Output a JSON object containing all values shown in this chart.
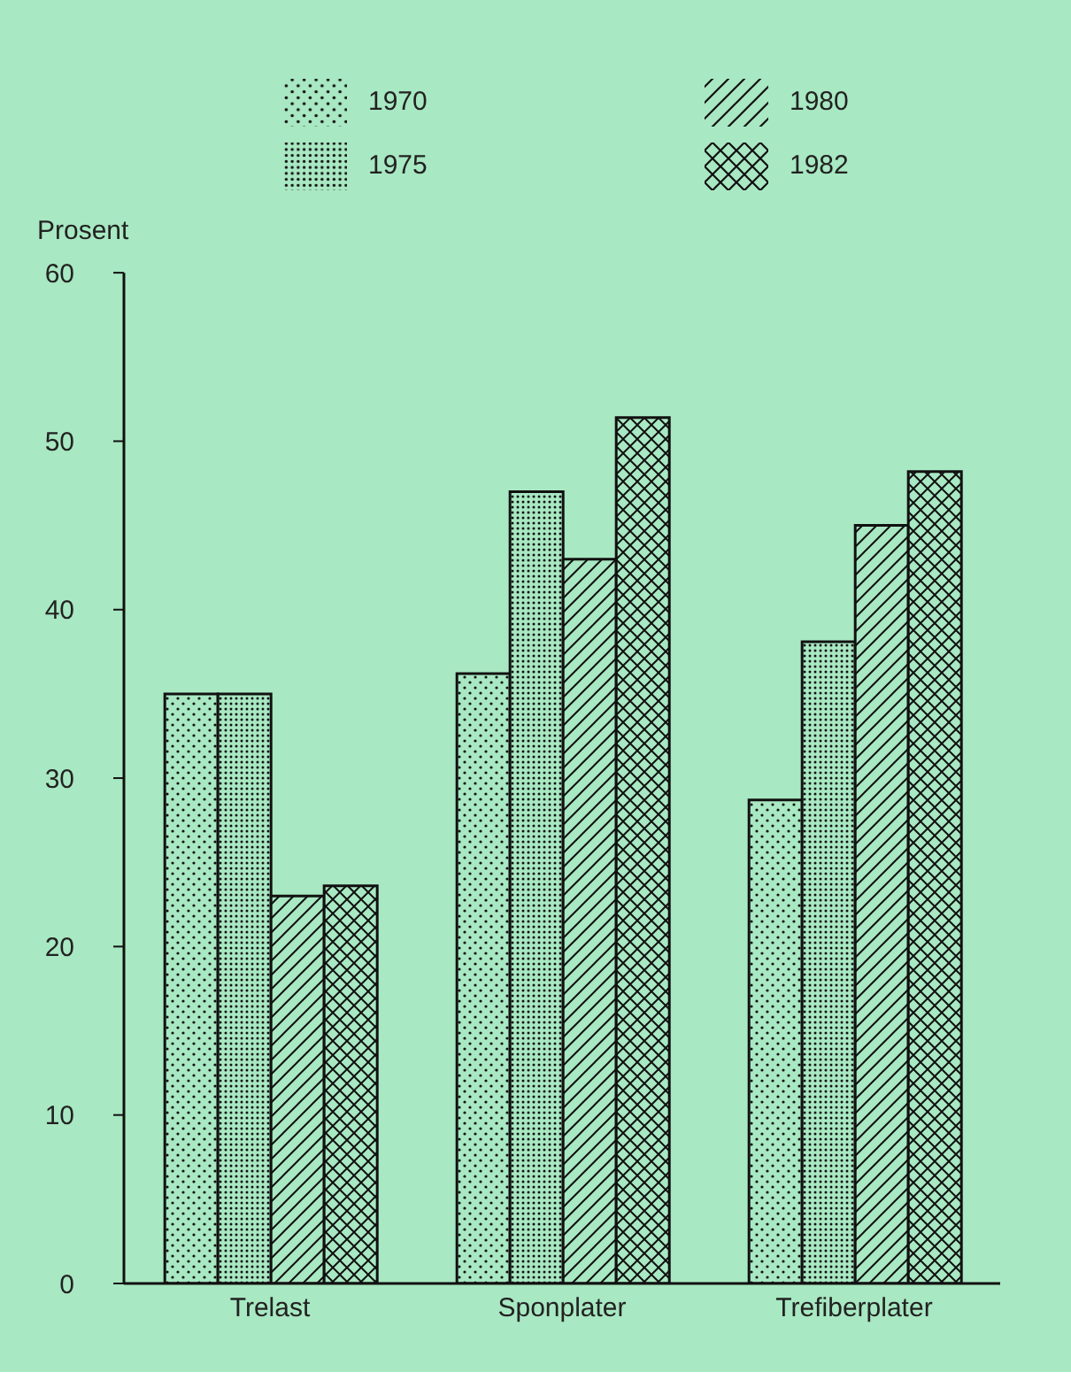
{
  "chart_data": {
    "type": "bar",
    "ylabel": "Prosent",
    "categories": [
      "Trelast",
      "Sponplater",
      "Trefiberplater"
    ],
    "series": [
      {
        "name": "1970",
        "color": "#111111",
        "values": [
          35,
          36.2,
          28.7
        ]
      },
      {
        "name": "1975",
        "color": "#111111",
        "values": [
          35,
          47,
          38.1
        ]
      },
      {
        "name": "1980",
        "color": "#111111",
        "values": [
          23,
          43,
          45
        ]
      },
      {
        "name": "1982",
        "color": "#111111",
        "values": [
          23.6,
          51.4,
          48.2
        ]
      }
    ],
    "ylim": [
      0,
      60
    ],
    "yticks": [
      0,
      10,
      20,
      30,
      40,
      50,
      60
    ],
    "legend": "top"
  }
}
